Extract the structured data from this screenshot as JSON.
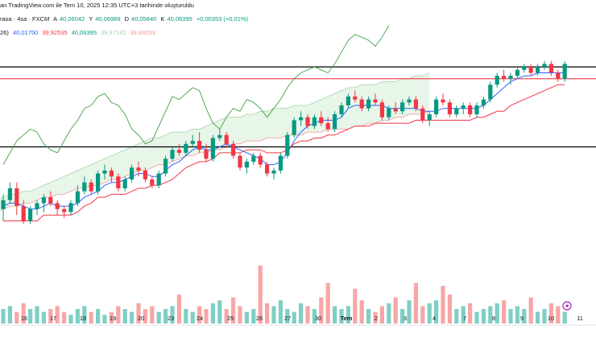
{
  "header": {
    "line1": "an TradingView.com ile Tem 10, 2025 12:35 UTC+3 tarihinde oluşturuldu",
    "line2_symbol": "rasa · 4sa · FXCM",
    "line2_o_label": "A",
    "line2_o": "40,06042",
    "line2_h_label": "Y",
    "line2_h": "40,06989",
    "line2_l_label": "D",
    "line2_l": "40,05840",
    "line2_c_label": "K",
    "line2_c": "40,06395",
    "line2_change": "+0,00353 (+0,01%)",
    "line3_prefix": "26)",
    "line3_values": [
      "40,01750",
      "39,92535",
      "40,06395",
      "39,97142",
      "39,89253"
    ]
  },
  "colors": {
    "up": "#089981",
    "down": "#f23645",
    "tenkan": "#2962ff",
    "kijun": "#f23645",
    "chikou": "#43a047",
    "cloud_up": "#e8f5e9",
    "cloud_down": "#fdecea",
    "vol_up": "#7fcfc4",
    "vol_down": "#f7a6a6",
    "level_black": "#000000",
    "level_red": "#f23645"
  },
  "axis": {
    "x_ticks": [
      "16",
      "17",
      "18",
      "19",
      "20",
      "23",
      "24",
      "25",
      "26",
      "27",
      "30",
      "Tem",
      "2",
      "3",
      "4",
      "7",
      "8",
      "9",
      "10",
      "11"
    ],
    "marker_icon": "lightning-icon"
  },
  "chart_data": {
    "type": "candlestick",
    "candles": [
      [
        39.57,
        39.62,
        39.53,
        39.6
      ],
      [
        39.6,
        39.66,
        39.59,
        39.64
      ],
      [
        39.64,
        39.66,
        39.55,
        39.58
      ],
      [
        39.58,
        39.6,
        39.52,
        39.53
      ],
      [
        39.53,
        39.58,
        39.52,
        39.57
      ],
      [
        39.57,
        39.6,
        39.55,
        39.59
      ],
      [
        39.59,
        39.62,
        39.56,
        39.61
      ],
      [
        39.61,
        39.63,
        39.58,
        39.59
      ],
      [
        39.59,
        39.6,
        39.55,
        39.57
      ],
      [
        39.57,
        39.58,
        39.54,
        39.56
      ],
      [
        39.56,
        39.6,
        39.55,
        39.59
      ],
      [
        39.59,
        39.65,
        39.58,
        39.63
      ],
      [
        39.63,
        39.68,
        39.62,
        39.66
      ],
      [
        39.66,
        39.67,
        39.62,
        39.63
      ],
      [
        39.63,
        39.7,
        39.62,
        39.69
      ],
      [
        39.69,
        39.72,
        39.67,
        39.7
      ],
      [
        39.7,
        39.71,
        39.66,
        39.68
      ],
      [
        39.68,
        39.69,
        39.63,
        39.64
      ],
      [
        39.64,
        39.68,
        39.63,
        39.67
      ],
      [
        39.67,
        39.72,
        39.66,
        39.71
      ],
      [
        39.71,
        39.73,
        39.68,
        39.7
      ],
      [
        39.7,
        39.71,
        39.66,
        39.67
      ],
      [
        39.67,
        39.68,
        39.64,
        39.65
      ],
      [
        39.65,
        39.7,
        39.64,
        39.69
      ],
      [
        39.69,
        39.75,
        39.68,
        39.74
      ],
      [
        39.74,
        39.78,
        39.73,
        39.77
      ],
      [
        39.77,
        39.79,
        39.75,
        39.76
      ],
      [
        39.76,
        39.8,
        39.75,
        39.79
      ],
      [
        39.79,
        39.82,
        39.78,
        39.8
      ],
      [
        39.8,
        39.83,
        39.76,
        39.77
      ],
      [
        39.77,
        39.79,
        39.73,
        39.74
      ],
      [
        39.74,
        39.82,
        39.73,
        39.81
      ],
      [
        39.81,
        39.84,
        39.8,
        39.82
      ],
      [
        39.82,
        39.83,
        39.78,
        39.79
      ],
      [
        39.79,
        39.8,
        39.74,
        39.75
      ],
      [
        39.75,
        39.76,
        39.7,
        39.71
      ],
      [
        39.71,
        39.74,
        39.69,
        39.73
      ],
      [
        39.73,
        39.76,
        39.72,
        39.75
      ],
      [
        39.75,
        39.76,
        39.71,
        39.72
      ],
      [
        39.72,
        39.73,
        39.68,
        39.69
      ],
      [
        39.69,
        39.71,
        39.67,
        39.7
      ],
      [
        39.7,
        39.76,
        39.69,
        39.75
      ],
      [
        39.75,
        39.83,
        39.74,
        39.82
      ],
      [
        39.82,
        39.88,
        39.81,
        39.87
      ],
      [
        39.87,
        39.9,
        39.85,
        39.88
      ],
      [
        39.88,
        39.89,
        39.84,
        39.85
      ],
      [
        39.85,
        39.89,
        39.84,
        39.88
      ],
      [
        39.88,
        39.9,
        39.85,
        39.86
      ],
      [
        39.86,
        39.88,
        39.83,
        39.84
      ],
      [
        39.84,
        39.9,
        39.83,
        39.89
      ],
      [
        39.89,
        39.93,
        39.88,
        39.92
      ],
      [
        39.92,
        39.96,
        39.91,
        39.95
      ],
      [
        39.95,
        39.97,
        39.93,
        39.94
      ],
      [
        39.94,
        39.95,
        39.9,
        39.91
      ],
      [
        39.91,
        39.95,
        39.9,
        39.94
      ],
      [
        39.94,
        39.96,
        39.92,
        39.93
      ],
      [
        39.93,
        39.94,
        39.87,
        39.88
      ],
      [
        39.88,
        39.92,
        39.87,
        39.91
      ],
      [
        39.91,
        39.93,
        39.89,
        39.9
      ],
      [
        39.9,
        39.94,
        39.89,
        39.93
      ],
      [
        39.93,
        39.95,
        39.92,
        39.94
      ],
      [
        39.94,
        39.95,
        39.9,
        39.91
      ],
      [
        39.91,
        39.92,
        39.86,
        39.87
      ],
      [
        39.87,
        39.9,
        39.85,
        39.89
      ],
      [
        39.89,
        39.95,
        39.88,
        39.94
      ],
      [
        39.94,
        39.96,
        39.92,
        39.93
      ],
      [
        39.93,
        39.94,
        39.88,
        39.89
      ],
      [
        39.89,
        39.92,
        39.88,
        39.91
      ],
      [
        39.91,
        39.93,
        39.89,
        39.92
      ],
      [
        39.92,
        39.93,
        39.88,
        39.89
      ],
      [
        39.89,
        39.93,
        39.88,
        39.92
      ],
      [
        39.92,
        39.95,
        39.91,
        39.94
      ],
      [
        39.94,
        40.0,
        39.93,
        39.99
      ],
      [
        39.99,
        40.03,
        39.98,
        40.02
      ],
      [
        40.02,
        40.04,
        40.0,
        40.01
      ],
      [
        40.01,
        40.03,
        39.99,
        40.02
      ],
      [
        40.02,
        40.05,
        40.01,
        40.04
      ],
      [
        40.04,
        40.06,
        40.03,
        40.05
      ],
      [
        40.05,
        40.06,
        40.02,
        40.03
      ],
      [
        40.03,
        40.06,
        40.02,
        40.05
      ],
      [
        40.05,
        40.07,
        40.04,
        40.06
      ],
      [
        40.06,
        40.07,
        40.02,
        40.03
      ],
      [
        40.03,
        40.04,
        40.0,
        40.01
      ],
      [
        40.01,
        40.07,
        40.0,
        40.06
      ]
    ],
    "volumes": [
      5,
      6,
      4,
      7,
      5,
      6,
      4,
      5,
      6,
      4,
      3,
      5,
      6,
      4,
      5,
      3,
      4,
      6,
      5,
      4,
      7,
      5,
      6,
      4,
      5,
      6,
      10,
      5,
      4,
      6,
      5,
      7,
      8,
      5,
      9,
      6,
      4,
      5,
      20,
      7,
      6,
      8,
      5,
      4,
      7,
      6,
      5,
      9,
      14,
      6,
      5,
      6,
      12,
      8,
      5,
      4,
      6,
      7,
      9,
      5,
      8,
      14,
      6,
      7,
      8,
      13,
      10,
      5,
      6,
      7,
      4,
      5,
      6,
      7,
      8,
      5,
      6,
      5,
      9,
      4,
      5,
      7,
      6,
      4
    ],
    "tenkan": [
      39.58,
      39.59,
      39.59,
      39.58,
      39.57,
      39.57,
      39.58,
      39.59,
      39.58,
      39.58,
      39.58,
      39.59,
      39.61,
      39.62,
      39.63,
      39.65,
      39.66,
      39.66,
      39.67,
      39.68,
      39.69,
      39.69,
      39.68,
      39.68,
      39.7,
      39.72,
      39.73,
      39.75,
      39.77,
      39.78,
      39.77,
      39.77,
      39.78,
      39.79,
      39.78,
      39.77,
      39.76,
      39.75,
      39.74,
      39.72,
      39.72,
      39.73,
      39.76,
      39.8,
      39.83,
      39.85,
      39.86,
      39.87,
      39.87,
      39.87,
      39.88,
      39.91,
      39.92,
      39.92,
      39.92,
      39.92,
      39.92,
      39.91,
      39.91,
      39.91,
      39.91,
      39.91,
      39.9,
      39.9,
      39.9,
      39.91,
      39.91,
      39.91,
      39.91,
      39.91,
      39.91,
      39.92,
      39.94,
      39.96,
      39.98,
      40.0,
      40.01,
      40.02,
      40.02,
      40.03,
      40.03,
      40.03,
      40.03,
      40.03
    ],
    "kijun": [
      39.53,
      39.53,
      39.53,
      39.53,
      39.53,
      39.53,
      39.55,
      39.55,
      39.55,
      39.55,
      39.55,
      39.56,
      39.58,
      39.59,
      39.61,
      39.61,
      39.62,
      39.62,
      39.62,
      39.63,
      39.64,
      39.64,
      39.65,
      39.65,
      39.66,
      39.67,
      39.69,
      39.71,
      39.72,
      39.73,
      39.73,
      39.74,
      39.76,
      39.76,
      39.76,
      39.76,
      39.77,
      39.77,
      39.77,
      39.76,
      39.76,
      39.76,
      39.77,
      39.79,
      39.8,
      39.8,
      39.81,
      39.81,
      39.82,
      39.82,
      39.83,
      39.84,
      39.85,
      39.85,
      39.85,
      39.86,
      39.86,
      39.86,
      39.86,
      39.86,
      39.86,
      39.87,
      39.87,
      39.87,
      39.87,
      39.87,
      39.87,
      39.87,
      39.87,
      39.87,
      39.88,
      39.88,
      39.89,
      39.9,
      39.9,
      39.92,
      39.93,
      39.94,
      39.95,
      39.96,
      39.97,
      39.98,
      39.99,
      39.99
    ],
    "chikou": [
      39.72,
      39.76,
      39.8,
      39.82,
      39.84,
      39.83,
      39.79,
      39.77,
      39.76,
      39.8,
      39.84,
      39.87,
      39.91,
      39.92,
      39.95,
      39.96,
      39.93,
      39.92,
      39.89,
      39.84,
      39.82,
      39.79,
      39.8,
      39.85,
      39.9,
      39.95,
      39.94,
      39.96,
      39.98,
      39.97,
      39.91,
      39.86,
      39.84,
      39.88,
      39.91,
      39.9,
      39.94,
      39.93,
      39.91,
      39.88,
      39.91,
      39.94,
      39.98,
      40.01,
      40.03,
      40.04,
      40.05,
      40.04,
      40.03,
      40.06,
      40.1,
      40.14,
      40.16,
      40.15,
      40.14,
      40.12,
      40.15,
      40.19
    ],
    "span_a": [
      39.49,
      39.5,
      39.5,
      39.5,
      39.51,
      39.52,
      39.52,
      39.53,
      39.53,
      39.54,
      39.55,
      39.55,
      39.56,
      39.56,
      39.57,
      39.58,
      39.58,
      39.59,
      39.6,
      39.6,
      39.61,
      39.62,
      39.62,
      39.63,
      39.63,
      39.64,
      39.65,
      39.66,
      39.67,
      39.68,
      39.69,
      39.7,
      39.71,
      39.72,
      39.73,
      39.74,
      39.75,
      39.76,
      39.77,
      39.78,
      39.79,
      39.8,
      39.81,
      39.81,
      39.82,
      39.83,
      39.83,
      39.83,
      39.84,
      39.84,
      39.85,
      39.86,
      39.87,
      39.88,
      39.88,
      39.88,
      39.89,
      39.89,
      39.9,
      39.9,
      39.91,
      39.91,
      39.91,
      39.92,
      39.92,
      39.92,
      39.93,
      39.94,
      39.95,
      39.96,
      39.97,
      39.98,
      39.98,
      39.99,
      39.99,
      39.99,
      40.0,
      40.0,
      40.0,
      40.01,
      40.01,
      40.02,
      40.02,
      40.03
    ],
    "span_b": [
      39.49,
      39.48,
      39.47,
      39.47,
      39.48,
      39.48,
      39.49,
      39.5,
      39.5,
      39.51,
      39.52,
      39.52,
      39.52,
      39.53,
      39.54,
      39.54,
      39.55,
      39.55,
      39.56,
      39.56,
      39.57,
      39.58,
      39.58,
      39.59,
      39.59,
      39.6,
      39.61,
      39.61,
      39.62,
      39.62,
      39.63,
      39.64,
      39.64,
      39.65,
      39.65,
      39.66,
      39.67,
      39.67,
      39.68,
      39.69,
      39.7,
      39.7,
      39.71,
      39.72,
      39.72,
      39.73,
      39.74,
      39.75,
      39.75,
      39.76,
      39.76,
      39.77,
      39.77,
      39.78,
      39.79,
      39.79,
      39.8,
      39.8,
      39.8,
      39.81,
      39.81,
      39.81,
      39.82,
      39.82,
      39.82,
      39.83,
      39.83,
      39.83,
      39.84,
      39.84,
      39.84,
      39.84,
      39.85,
      39.85,
      39.86,
      39.86,
      39.87,
      39.87,
      39.88,
      39.88,
      39.89,
      39.89,
      39.89,
      39.9
    ],
    "levels": [
      {
        "value": 40.05,
        "color": "#000000"
      },
      {
        "value": 40.01,
        "color": "#f23645"
      },
      {
        "value": 39.78,
        "color": "#000000"
      }
    ],
    "y_range": [
      39.42,
      40.14
    ]
  }
}
